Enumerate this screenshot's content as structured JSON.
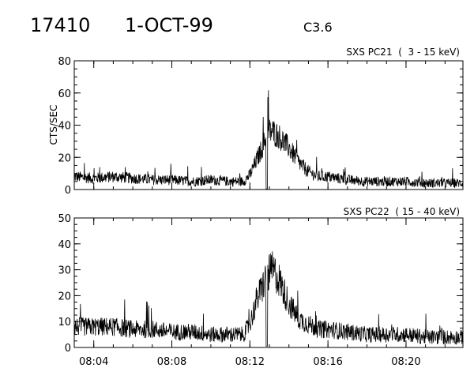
{
  "header": {
    "event_id": "17410",
    "date": "1-OCT-99",
    "goes_class": "C3.6"
  },
  "chart_data": [
    {
      "type": "line",
      "title": "SXS PC21  (  3 - 15 keV)",
      "ylabel": "CTS/SEC",
      "xlabel": "",
      "xlim": [
        "08:03:00",
        "08:22:55"
      ],
      "ylim": [
        0,
        80
      ],
      "yticks": [
        0,
        20,
        40,
        60,
        80
      ],
      "xticks": [
        "08:04",
        "08:08",
        "08:12",
        "08:16",
        "08:20"
      ],
      "series": [
        {
          "x": [
            "08:03:00",
            "08:04:00",
            "08:05:00",
            "08:06:00",
            "08:07:00",
            "08:08:00",
            "08:09:00",
            "08:10:00",
            "08:11:00",
            "08:11:40",
            "08:12:00",
            "08:12:20",
            "08:12:40",
            "08:12:55",
            "08:13:10",
            "08:13:30",
            "08:14:00",
            "08:14:30",
            "08:15:00",
            "08:15:30",
            "08:16:00",
            "08:17:00",
            "08:18:00",
            "08:19:00",
            "08:20:00",
            "08:21:00",
            "08:22:00",
            "08:22:55"
          ],
          "values": [
            8,
            7,
            8,
            7,
            6,
            6,
            5,
            6,
            5,
            5,
            9,
            18,
            27,
            36,
            36,
            33,
            26,
            17,
            11,
            8,
            8,
            6,
            5,
            5,
            5,
            4,
            4,
            4
          ]
        }
      ]
    },
    {
      "type": "line",
      "title": "SXS PC22  ( 15 - 40 keV)",
      "ylabel": "",
      "xlabel": "",
      "xlim": [
        "08:03:00",
        "08:22:55"
      ],
      "ylim": [
        0,
        50
      ],
      "yticks": [
        0,
        10,
        20,
        30,
        40,
        50
      ],
      "xticks": [
        "08:04",
        "08:08",
        "08:12",
        "08:16",
        "08:20"
      ],
      "series": [
        {
          "x": [
            "08:03:00",
            "08:04:00",
            "08:05:00",
            "08:06:00",
            "08:07:00",
            "08:08:00",
            "08:09:00",
            "08:10:00",
            "08:11:00",
            "08:11:40",
            "08:12:00",
            "08:12:20",
            "08:12:40",
            "08:12:55",
            "08:13:10",
            "08:13:30",
            "08:14:00",
            "08:14:30",
            "08:15:00",
            "08:15:30",
            "08:16:00",
            "08:17:00",
            "08:18:00",
            "08:19:00",
            "08:20:00",
            "08:21:00",
            "08:22:00",
            "08:22:55"
          ],
          "values": [
            8,
            8,
            8,
            7,
            7,
            6,
            6,
            5,
            5,
            5,
            9,
            18,
            24,
            28,
            30,
            26,
            17,
            11,
            9,
            7,
            7,
            6,
            5,
            5,
            5,
            4,
            4,
            4
          ]
        }
      ]
    }
  ]
}
